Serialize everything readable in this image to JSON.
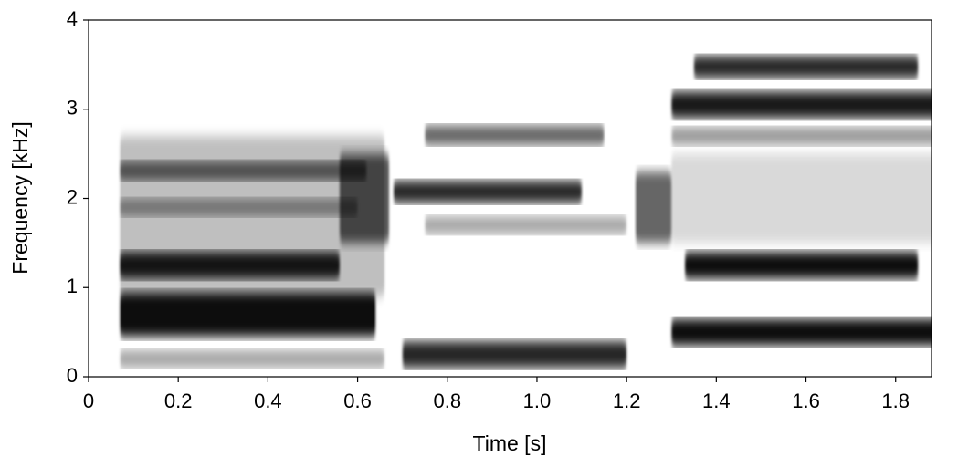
{
  "chart_data": {
    "type": "spectrogram",
    "x_label": "Time [s]",
    "y_label": "Frequency [kHz]",
    "xlim": [
      0,
      1.88
    ],
    "ylim": [
      0,
      4
    ],
    "xticks": [
      0,
      0.2,
      0.4,
      0.6,
      0.8,
      {
        "value": 1,
        "label": "1.0"
      },
      1.2,
      1.4,
      1.6,
      1.8
    ],
    "yticks": [
      0,
      1,
      2,
      3,
      4
    ],
    "color": "#000000",
    "bands": [
      {
        "t": [
          0.07,
          0.66
        ],
        "f": [
          0.9,
          2.7
        ],
        "level": 0.25
      },
      {
        "t": [
          0.07,
          0.64
        ],
        "f": [
          0.45,
          0.95
        ],
        "level": 0.95
      },
      {
        "t": [
          0.07,
          0.56
        ],
        "f": [
          1.1,
          1.4
        ],
        "level": 0.9
      },
      {
        "t": [
          0.07,
          0.62
        ],
        "f": [
          2.2,
          2.42
        ],
        "level": 0.6
      },
      {
        "t": [
          0.07,
          0.6
        ],
        "f": [
          1.8,
          2.0
        ],
        "level": 0.4
      },
      {
        "t": [
          0.07,
          0.66
        ],
        "f": [
          0.1,
          0.3
        ],
        "level": 0.35
      },
      {
        "t": [
          0.56,
          0.67
        ],
        "f": [
          1.5,
          2.5
        ],
        "level": 0.65
      },
      {
        "t": [
          0.68,
          1.1
        ],
        "f": [
          1.95,
          2.2
        ],
        "level": 0.85
      },
      {
        "t": [
          0.75,
          1.15
        ],
        "f": [
          2.6,
          2.82
        ],
        "level": 0.6
      },
      {
        "t": [
          0.7,
          1.2
        ],
        "f": [
          0.1,
          0.4
        ],
        "level": 0.85
      },
      {
        "t": [
          0.75,
          1.2
        ],
        "f": [
          1.6,
          1.8
        ],
        "level": 0.35
      },
      {
        "t": [
          1.22,
          1.3
        ],
        "f": [
          1.5,
          2.3
        ],
        "level": 0.6
      },
      {
        "t": [
          1.3,
          1.9
        ],
        "f": [
          0.35,
          0.65
        ],
        "level": 0.95
      },
      {
        "t": [
          1.33,
          1.85
        ],
        "f": [
          1.1,
          1.4
        ],
        "level": 0.95
      },
      {
        "t": [
          1.3,
          1.9
        ],
        "f": [
          2.9,
          3.2
        ],
        "level": 0.9
      },
      {
        "t": [
          1.35,
          1.85
        ],
        "f": [
          3.35,
          3.6
        ],
        "level": 0.85
      },
      {
        "t": [
          1.3,
          1.9
        ],
        "f": [
          2.6,
          2.8
        ],
        "level": 0.4
      },
      {
        "t": [
          1.3,
          1.9
        ],
        "f": [
          1.5,
          2.5
        ],
        "level": 0.15
      }
    ]
  }
}
